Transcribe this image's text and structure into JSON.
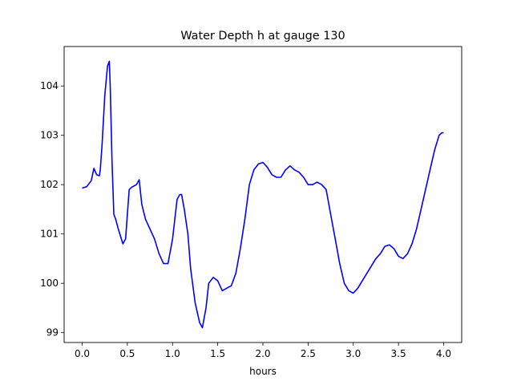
{
  "chart_data": {
    "type": "line",
    "title": "Water Depth h at gauge 130",
    "xlabel": "hours",
    "ylabel": "",
    "xlim": [
      -0.2,
      4.2
    ],
    "ylim": [
      98.8,
      104.8
    ],
    "xticks": [
      0.0,
      0.5,
      1.0,
      1.5,
      2.0,
      2.5,
      3.0,
      3.5,
      4.0
    ],
    "xtick_labels": [
      "0.0",
      "0.5",
      "1.0",
      "1.5",
      "2.0",
      "2.5",
      "3.0",
      "3.5",
      "4.0"
    ],
    "yticks": [
      99,
      100,
      101,
      102,
      103,
      104
    ],
    "ytick_labels": [
      "99",
      "100",
      "101",
      "102",
      "103",
      "104"
    ],
    "grid": false,
    "series": [
      {
        "color": "#0000ff",
        "x": [
          0.0,
          0.05,
          0.1,
          0.13,
          0.16,
          0.19,
          0.2,
          0.22,
          0.25,
          0.28,
          0.3,
          0.31,
          0.33,
          0.35,
          0.37,
          0.4,
          0.45,
          0.48,
          0.5,
          0.52,
          0.55,
          0.6,
          0.63,
          0.66,
          0.7,
          0.75,
          0.8,
          0.85,
          0.9,
          0.95,
          1.0,
          1.05,
          1.08,
          1.1,
          1.13,
          1.17,
          1.2,
          1.25,
          1.3,
          1.33,
          1.37,
          1.4,
          1.45,
          1.5,
          1.55,
          1.6,
          1.65,
          1.7,
          1.75,
          1.8,
          1.85,
          1.9,
          1.95,
          2.0,
          2.05,
          2.1,
          2.15,
          2.2,
          2.25,
          2.3,
          2.35,
          2.4,
          2.45,
          2.5,
          2.55,
          2.6,
          2.65,
          2.7,
          2.75,
          2.8,
          2.85,
          2.9,
          2.95,
          3.0,
          3.05,
          3.1,
          3.15,
          3.2,
          3.25,
          3.3,
          3.35,
          3.4,
          3.45,
          3.5,
          3.55,
          3.6,
          3.65,
          3.7,
          3.75,
          3.8,
          3.85,
          3.9,
          3.95,
          3.98,
          4.0
        ],
        "y": [
          101.93,
          101.96,
          102.08,
          102.33,
          102.2,
          102.18,
          102.3,
          102.8,
          103.8,
          104.4,
          104.5,
          104.0,
          102.5,
          101.4,
          101.3,
          101.1,
          100.8,
          100.9,
          101.4,
          101.9,
          101.95,
          102.0,
          102.1,
          101.6,
          101.3,
          101.1,
          100.9,
          100.6,
          100.4,
          100.4,
          100.9,
          101.7,
          101.8,
          101.8,
          101.5,
          101.0,
          100.3,
          99.6,
          99.2,
          99.1,
          99.5,
          100.0,
          100.12,
          100.05,
          99.85,
          99.9,
          99.95,
          100.2,
          100.7,
          101.3,
          102.0,
          102.3,
          102.42,
          102.45,
          102.35,
          102.2,
          102.15,
          102.15,
          102.3,
          102.38,
          102.3,
          102.25,
          102.15,
          102.0,
          102.0,
          102.05,
          102.0,
          101.9,
          101.4,
          100.9,
          100.4,
          100.0,
          99.85,
          99.8,
          99.9,
          100.05,
          100.2,
          100.35,
          100.5,
          100.6,
          100.75,
          100.78,
          100.7,
          100.55,
          100.5,
          100.6,
          100.8,
          101.1,
          101.5,
          101.9,
          102.3,
          102.7,
          103.0,
          103.05,
          103.05
        ]
      }
    ]
  }
}
